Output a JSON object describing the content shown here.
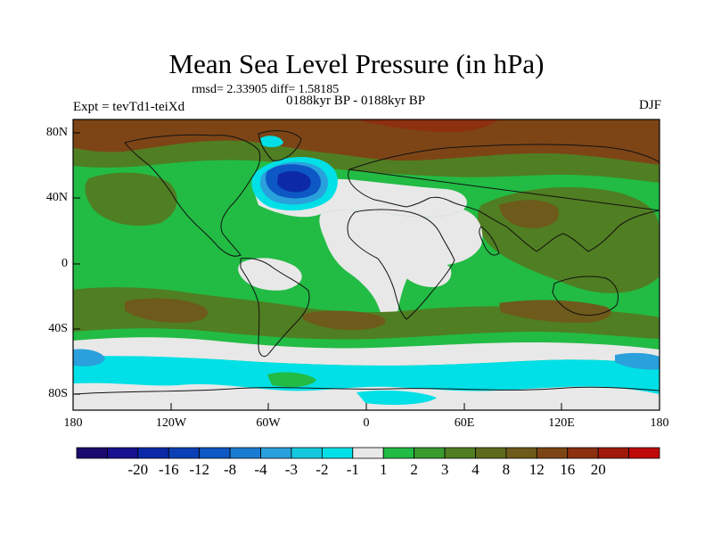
{
  "title": "Mean Sea Level Pressure (in hPa)",
  "stats": "rmsd= 2.33905 diff= 1.58185",
  "experiment": "Expt = tevTd1-teiXd",
  "period": "0188kyr BP - 0188kyr BP",
  "season": "DJF",
  "lat_labels": [
    "80N",
    "40N",
    "0",
    "40S",
    "80S"
  ],
  "lon_labels": [
    "180",
    "120W",
    "60W",
    "0",
    "60E",
    "120E",
    "180"
  ],
  "colorbar": {
    "labels": [
      "-20",
      "-16",
      "-12",
      "-8",
      "-4",
      "-3",
      "-2",
      "-1",
      "1",
      "2",
      "3",
      "4",
      "8",
      "12",
      "16",
      "20"
    ],
    "colors": [
      "#1a0a6e",
      "#17108f",
      "#0c2aa8",
      "#0a3fb6",
      "#0d58c4",
      "#1a7bd2",
      "#2aa0dc",
      "#15c8e0",
      "#00e0e6",
      "#e8e8e8",
      "#22bb44",
      "#3a9a2e",
      "#507e22",
      "#5d6a1c",
      "#6e5a1a",
      "#7d4516",
      "#8c3010",
      "#a01a0c",
      "#c00a0a"
    ]
  },
  "colors": {
    "ocean_land_neutral": "#e8e8e8",
    "green_light": "#22bb44",
    "green_mid": "#3a9a2e",
    "olive": "#507e22",
    "brown": "#7d4516",
    "cyan": "#00e0e6",
    "blue_light": "#2aa0dc",
    "blue_mid": "#0d58c4",
    "blue_dark": "#0c2aa8"
  }
}
